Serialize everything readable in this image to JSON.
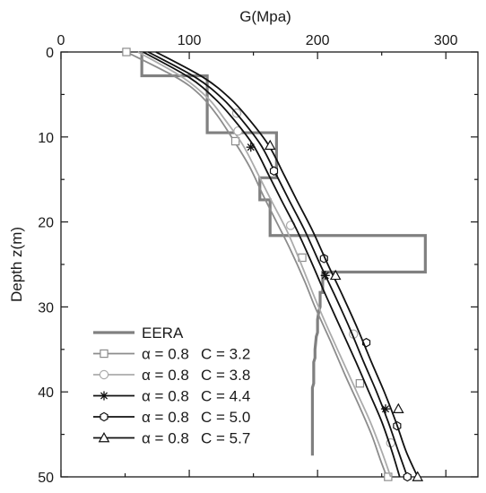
{
  "chart_data": {
    "type": "line",
    "xlabel": "G(Mpa)",
    "ylabel": "Depth z(m)",
    "xlim": [
      0,
      325
    ],
    "ylim": [
      0,
      50
    ],
    "x_axis_position": "top",
    "y_axis_inverted": true,
    "xticks": [
      "0",
      "100",
      "200",
      "300"
    ],
    "yticks": [
      "0",
      "10",
      "20",
      "30",
      "40",
      "50"
    ],
    "grid": false,
    "legend_position": "bottom-left",
    "series": [
      {
        "name": "EERA",
        "color": "#808080",
        "marker": "none",
        "style": "step",
        "points": [
          [
            63,
            0
          ],
          [
            63,
            2.8
          ],
          [
            114,
            2.8
          ],
          [
            114,
            9.5
          ],
          [
            168,
            9.5
          ],
          [
            168,
            14.8
          ],
          [
            155,
            14.8
          ],
          [
            155,
            17.4
          ],
          [
            163,
            17.4
          ],
          [
            163,
            21.6
          ],
          [
            284,
            21.6
          ],
          [
            284,
            25.9
          ],
          [
            204,
            25.9
          ],
          [
            204,
            28.3
          ],
          [
            202,
            28.3
          ],
          [
            202,
            30.0
          ],
          [
            201,
            30.5
          ],
          [
            200,
            31.5
          ],
          [
            200,
            33.0
          ],
          [
            199,
            33.5
          ],
          [
            198,
            35.0
          ],
          [
            198,
            36.0
          ],
          [
            197,
            36.5
          ],
          [
            197,
            39.0
          ],
          [
            196,
            39.5
          ],
          [
            196,
            47.5
          ]
        ]
      },
      {
        "name": "α = 0.8  C = 3.2",
        "label_a": "α = 0.8",
        "label_c": "C = 3.2",
        "color": "#8c8c8c",
        "marker": "square",
        "points": [
          [
            51,
            0
          ],
          [
            90,
            3
          ],
          [
            108,
            5
          ],
          [
            122,
            7.5
          ],
          [
            135,
            10.5
          ],
          [
            147,
            13.5
          ],
          [
            158,
            17
          ],
          [
            168,
            20
          ],
          [
            178,
            23
          ],
          [
            190,
            27
          ],
          [
            198,
            30
          ],
          [
            210,
            34
          ],
          [
            222,
            38.2
          ],
          [
            232,
            41.5
          ],
          [
            242,
            45
          ],
          [
            249,
            48
          ],
          [
            254,
            50
          ]
        ],
        "markers_at": [
          [
            51,
            0
          ],
          [
            136,
            10.5
          ],
          [
            188,
            24.2
          ],
          [
            233,
            39
          ],
          [
            255,
            50
          ]
        ]
      },
      {
        "name": "α = 0.8  C = 3.8",
        "label_a": "α = 0.8",
        "label_c": "C = 3.8",
        "color": "#ababab",
        "marker": "circle",
        "points": [
          [
            60,
            0
          ],
          [
            95,
            3
          ],
          [
            115,
            5.5
          ],
          [
            128,
            8
          ],
          [
            142,
            11
          ],
          [
            154,
            14.5
          ],
          [
            164,
            17.5
          ],
          [
            176,
            21
          ],
          [
            186,
            24.5
          ],
          [
            198,
            29
          ],
          [
            208,
            32.5
          ],
          [
            220,
            36.5
          ],
          [
            232,
            40.5
          ],
          [
            241,
            43.5
          ],
          [
            250,
            47
          ],
          [
            257,
            50
          ]
        ],
        "markers_at": [
          [
            137,
            7.2
          ],
          [
            138,
            9.3
          ],
          [
            179,
            20.4
          ],
          [
            228,
            33.2
          ],
          [
            257,
            46
          ]
        ]
      },
      {
        "name": "α = 0.8  C = 4.4",
        "label_a": "α = 0.8",
        "label_c": "C = 4.4",
        "color": "#111111",
        "marker": "asterisk",
        "points": [
          [
            64,
            0
          ],
          [
            100,
            3
          ],
          [
            120,
            5.5
          ],
          [
            135,
            8
          ],
          [
            150,
            11
          ],
          [
            162,
            14.5
          ],
          [
            172,
            17.5
          ],
          [
            184,
            21
          ],
          [
            196,
            25
          ],
          [
            206,
            28.5
          ],
          [
            218,
            32.5
          ],
          [
            230,
            36.5
          ],
          [
            240,
            40
          ],
          [
            250,
            43.5
          ],
          [
            258,
            47
          ],
          [
            264,
            50
          ]
        ],
        "markers_at": [
          [
            148,
            11.2
          ],
          [
            206,
            26.3
          ],
          [
            253,
            42
          ]
        ]
      },
      {
        "name": "α = 0.8  C = 5.0",
        "label_a": "α = 0.8",
        "label_c": "C = 5.0",
        "color": "#111111",
        "marker": "hexagon",
        "points": [
          [
            68,
            0
          ],
          [
            105,
            3
          ],
          [
            126,
            5.5
          ],
          [
            141,
            8
          ],
          [
            156,
            11
          ],
          [
            168,
            14.5
          ],
          [
            178,
            17.5
          ],
          [
            190,
            21
          ],
          [
            202,
            25
          ],
          [
            213,
            28.5
          ],
          [
            225,
            32.5
          ],
          [
            236,
            36.5
          ],
          [
            246,
            40
          ],
          [
            255,
            43.5
          ],
          [
            263,
            47
          ],
          [
            270,
            50
          ]
        ],
        "markers_at": [
          [
            166,
            14
          ],
          [
            205,
            24.3
          ],
          [
            238,
            34.2
          ],
          [
            262,
            44
          ],
          [
            270,
            50
          ]
        ]
      },
      {
        "name": "α = 0.8  C = 5.7",
        "label_a": "α = 0.8",
        "label_c": "C = 5.7",
        "color": "#111111",
        "marker": "triangle",
        "points": [
          [
            74,
            0
          ],
          [
            111,
            3
          ],
          [
            132,
            5.5
          ],
          [
            147,
            8
          ],
          [
            162,
            11
          ],
          [
            174,
            14.5
          ],
          [
            184,
            17.5
          ],
          [
            196,
            21
          ],
          [
            208,
            25
          ],
          [
            219,
            28.5
          ],
          [
            231,
            32.5
          ],
          [
            242,
            36.5
          ],
          [
            252,
            40
          ],
          [
            261,
            43.5
          ],
          [
            269,
            47
          ],
          [
            278,
            50
          ]
        ],
        "markers_at": [
          [
            163,
            11
          ],
          [
            214,
            26.3
          ],
          [
            263,
            42
          ],
          [
            278,
            50
          ]
        ]
      }
    ]
  }
}
